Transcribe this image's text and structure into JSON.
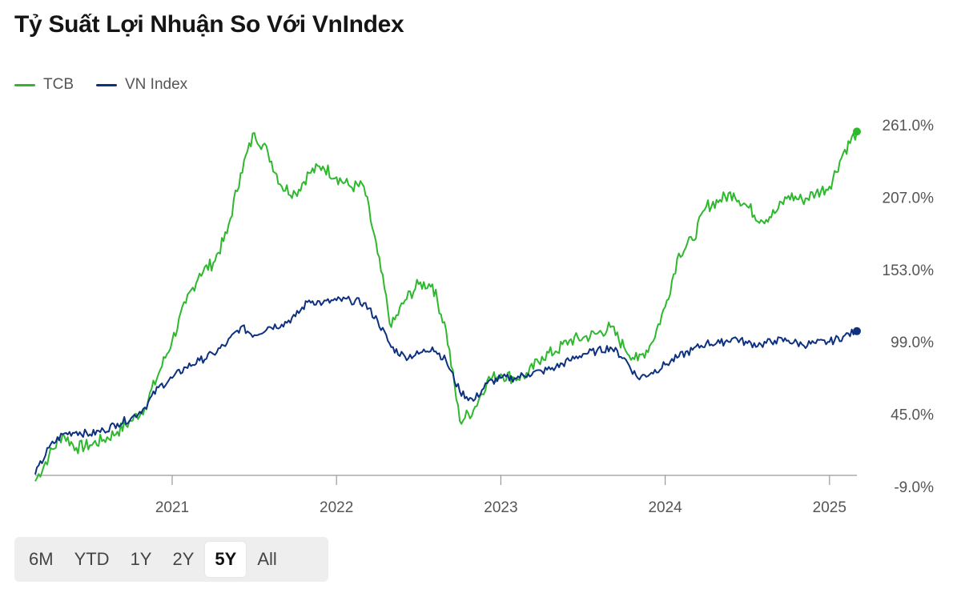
{
  "title": "Tỷ Suất Lợi Nhuận So Với VnIndex",
  "colors": {
    "tcb": "#2eb82e",
    "vnindex": "#0d3180",
    "axis": "#9a9a9a"
  },
  "legend": [
    {
      "label": "TCB",
      "color": "#2eb82e"
    },
    {
      "label": "VN Index",
      "color": "#0d3180"
    }
  ],
  "range_selector": {
    "options": [
      "6M",
      "YTD",
      "1Y",
      "2Y",
      "5Y",
      "All"
    ],
    "selected": "5Y"
  },
  "chart_data": {
    "type": "line",
    "x_ticks": [
      "2021",
      "2022",
      "2023",
      "2024",
      "2025"
    ],
    "y_ticks": [
      "261.0%",
      "207.0%",
      "153.0%",
      "99.0%",
      "45.0%",
      "-9.0%"
    ],
    "xlim": [
      "2020-03",
      "2025-03"
    ],
    "ylim": [
      -9,
      261
    ],
    "series": [
      {
        "name": "TCB",
        "color": "#2eb82e",
        "x": [
          "2020-03",
          "2020-04",
          "2020-05",
          "2020-06",
          "2020-07",
          "2020-08",
          "2020-09",
          "2020-10",
          "2020-11",
          "2020-12",
          "2021-01",
          "2021-02",
          "2021-03",
          "2021-04",
          "2021-05",
          "2021-06",
          "2021-07",
          "2021-08",
          "2021-09",
          "2021-10",
          "2021-11",
          "2021-12",
          "2022-01",
          "2022-02",
          "2022-03",
          "2022-04",
          "2022-05",
          "2022-06",
          "2022-07",
          "2022-08",
          "2022-09",
          "2022-10",
          "2022-11",
          "2022-12",
          "2023-01",
          "2023-02",
          "2023-03",
          "2023-04",
          "2023-05",
          "2023-06",
          "2023-07",
          "2023-08",
          "2023-09",
          "2023-10",
          "2023-11",
          "2023-12",
          "2024-01",
          "2024-02",
          "2024-03",
          "2024-04",
          "2024-05",
          "2024-06",
          "2024-07",
          "2024-08",
          "2024-09",
          "2024-10",
          "2024-11",
          "2024-12",
          "2025-01",
          "2025-02",
          "2025-03"
        ],
        "y": [
          -5,
          14,
          30,
          20,
          22,
          26,
          32,
          40,
          50,
          75,
          100,
          128,
          150,
          158,
          180,
          225,
          255,
          240,
          215,
          210,
          225,
          230,
          222,
          215,
          215,
          165,
          110,
          130,
          142,
          142,
          108,
          40,
          48,
          70,
          75,
          72,
          75,
          88,
          92,
          100,
          102,
          105,
          110,
          95,
          85,
          98,
          125,
          165,
          175,
          200,
          205,
          210,
          200,
          190,
          195,
          208,
          205,
          210,
          215,
          240,
          256
        ]
      },
      {
        "name": "VN Index",
        "color": "#0d3180",
        "x": [
          "2020-03",
          "2020-04",
          "2020-05",
          "2020-06",
          "2020-07",
          "2020-08",
          "2020-09",
          "2020-10",
          "2020-11",
          "2020-12",
          "2021-01",
          "2021-02",
          "2021-03",
          "2021-04",
          "2021-05",
          "2021-06",
          "2021-07",
          "2021-08",
          "2021-09",
          "2021-10",
          "2021-11",
          "2021-12",
          "2022-01",
          "2022-02",
          "2022-03",
          "2022-04",
          "2022-05",
          "2022-06",
          "2022-07",
          "2022-08",
          "2022-09",
          "2022-10",
          "2022-11",
          "2022-12",
          "2023-01",
          "2023-02",
          "2023-03",
          "2023-04",
          "2023-05",
          "2023-06",
          "2023-07",
          "2023-08",
          "2023-09",
          "2023-10",
          "2023-11",
          "2023-12",
          "2024-01",
          "2024-02",
          "2024-03",
          "2024-04",
          "2024-05",
          "2024-06",
          "2024-07",
          "2024-08",
          "2024-09",
          "2024-10",
          "2024-11",
          "2024-12",
          "2025-01",
          "2025-02",
          "2025-03"
        ],
        "y": [
          0,
          20,
          30,
          32,
          30,
          33,
          38,
          42,
          50,
          65,
          72,
          80,
          85,
          90,
          98,
          110,
          104,
          110,
          112,
          118,
          130,
          128,
          130,
          130,
          128,
          115,
          95,
          88,
          90,
          95,
          85,
          62,
          55,
          68,
          72,
          72,
          75,
          77,
          80,
          85,
          90,
          92,
          95,
          87,
          72,
          76,
          82,
          88,
          93,
          98,
          98,
          102,
          98,
          97,
          100,
          100,
          97,
          98,
          99,
          103,
          107
        ]
      }
    ]
  }
}
